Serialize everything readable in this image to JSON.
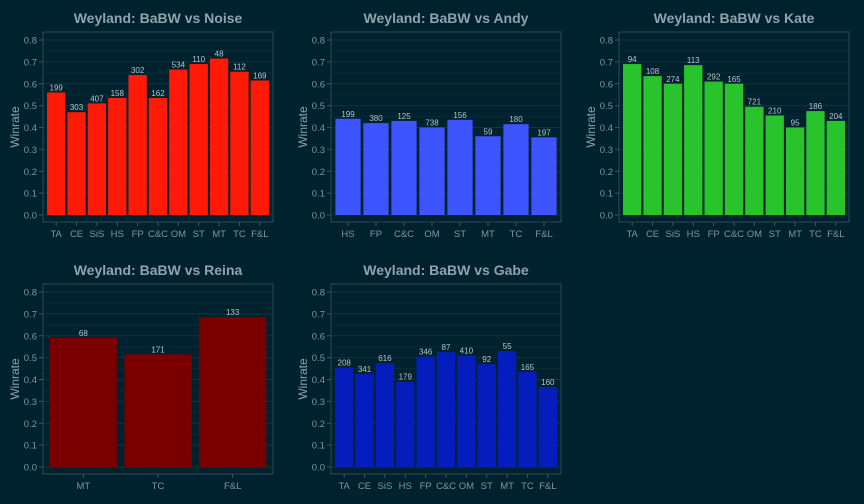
{
  "chart_data": [
    {
      "type": "bar",
      "title": "Weyland: BaBW vs Noise",
      "xlabel": "",
      "ylabel": "Winrate",
      "ylim": [
        0,
        0.8
      ],
      "yticks": [
        "0.0",
        "0.1",
        "0.2",
        "0.3",
        "0.4",
        "0.5",
        "0.6",
        "0.7",
        "0.8"
      ],
      "grid": true,
      "color": "#ff1a08",
      "categories": [
        "TA",
        "CE",
        "SiS",
        "HS",
        "FP",
        "C&C",
        "OM",
        "ST",
        "MT",
        "TC",
        "F&L"
      ],
      "values": [
        0.56,
        0.47,
        0.51,
        0.535,
        0.64,
        0.535,
        0.665,
        0.69,
        0.715,
        0.655,
        0.615
      ],
      "labels": [
        "199",
        "303",
        "407",
        "158",
        "302",
        "162",
        "534",
        "110",
        "48",
        "112",
        "169"
      ]
    },
    {
      "type": "bar",
      "title": "Weyland: BaBW vs Andy",
      "xlabel": "",
      "ylabel": "Winrate",
      "ylim": [
        0,
        0.8
      ],
      "yticks": [
        "0.0",
        "0.1",
        "0.2",
        "0.3",
        "0.4",
        "0.5",
        "0.6",
        "0.7",
        "0.8"
      ],
      "grid": true,
      "color": "#3d55ff",
      "categories": [
        "HS",
        "FP",
        "C&C",
        "OM",
        "ST",
        "MT",
        "TC",
        "F&L"
      ],
      "values": [
        0.44,
        0.42,
        0.43,
        0.4,
        0.435,
        0.36,
        0.415,
        0.355
      ],
      "labels": [
        "199",
        "380",
        "125",
        "738",
        "156",
        "59",
        "180",
        "197"
      ]
    },
    {
      "type": "bar",
      "title": "Weyland: BaBW vs Kate",
      "xlabel": "",
      "ylabel": "Winrate",
      "ylim": [
        0,
        0.8
      ],
      "yticks": [
        "0.0",
        "0.1",
        "0.2",
        "0.3",
        "0.4",
        "0.5",
        "0.6",
        "0.7",
        "0.8"
      ],
      "grid": true,
      "color": "#29c42b",
      "categories": [
        "TA",
        "CE",
        "SiS",
        "HS",
        "FP",
        "C&C",
        "OM",
        "ST",
        "MT",
        "TC",
        "F&L"
      ],
      "values": [
        0.69,
        0.635,
        0.6,
        0.685,
        0.61,
        0.6,
        0.495,
        0.455,
        0.4,
        0.475,
        0.43
      ],
      "labels": [
        "94",
        "108",
        "274",
        "113",
        "292",
        "165",
        "721",
        "210",
        "95",
        "186",
        "204"
      ]
    },
    {
      "type": "bar",
      "title": "Weyland: BaBW vs Reina",
      "xlabel": "",
      "ylabel": "Winrate",
      "ylim": [
        0,
        0.8
      ],
      "yticks": [
        "0.0",
        "0.1",
        "0.2",
        "0.3",
        "0.4",
        "0.5",
        "0.6",
        "0.7",
        "0.8"
      ],
      "grid": true,
      "color": "#7a0000",
      "categories": [
        "MT",
        "TC",
        "F&L"
      ],
      "values": [
        0.59,
        0.515,
        0.685
      ],
      "labels": [
        "68",
        "171",
        "133"
      ]
    },
    {
      "type": "bar",
      "title": "Weyland: BaBW vs Gabe",
      "xlabel": "",
      "ylabel": "Winrate",
      "ylim": [
        0,
        0.8
      ],
      "yticks": [
        "0.0",
        "0.1",
        "0.2",
        "0.3",
        "0.4",
        "0.5",
        "0.6",
        "0.7",
        "0.8"
      ],
      "grid": true,
      "color": "#051dbd",
      "categories": [
        "TA",
        "CE",
        "SiS",
        "HS",
        "FP",
        "C&C",
        "OM",
        "ST",
        "MT",
        "TC",
        "F&L"
      ],
      "values": [
        0.455,
        0.425,
        0.475,
        0.39,
        0.505,
        0.525,
        0.51,
        0.47,
        0.53,
        0.435,
        0.365
      ],
      "labels": [
        "208",
        "341",
        "616",
        "179",
        "346",
        "87",
        "410",
        "92",
        "55",
        "165",
        "160"
      ]
    }
  ]
}
